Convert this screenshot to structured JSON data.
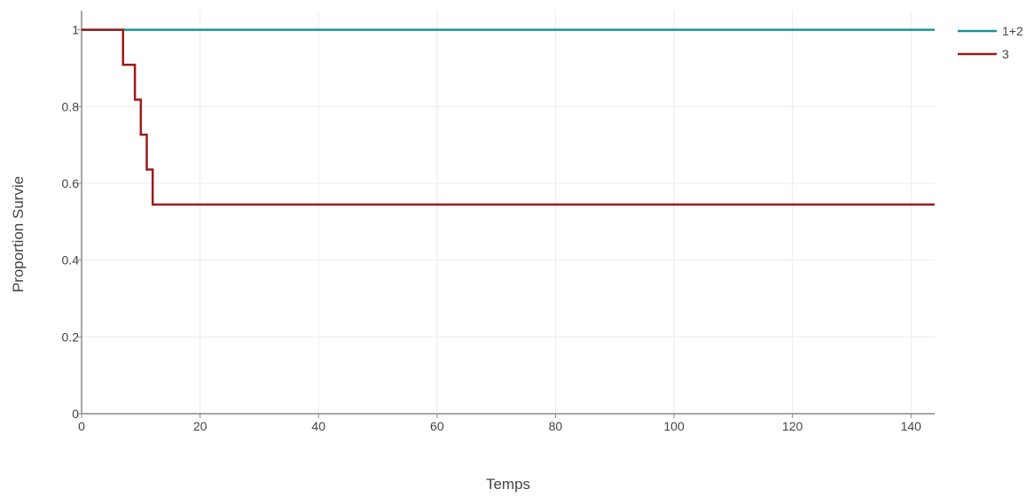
{
  "chart_data": {
    "type": "line",
    "title": "",
    "xlabel": "Temps",
    "ylabel": "Proportion Survie",
    "xlim": [
      0,
      144
    ],
    "ylim": [
      0,
      1.05
    ],
    "x_ticks": [
      0,
      20,
      40,
      60,
      80,
      100,
      120,
      140
    ],
    "x_tick_labels": [
      "0",
      "20",
      "40",
      "60",
      "80",
      "100",
      "120",
      "140"
    ],
    "y_ticks": [
      0,
      0.2,
      0.4,
      0.6,
      0.8,
      1
    ],
    "y_tick_labels": [
      "0",
      "0.2",
      "0.4",
      "0.6",
      "0.8",
      "1"
    ],
    "grid": true,
    "legend_position": "top-right",
    "step": true,
    "series": [
      {
        "name": "1+2",
        "color": "#17959a",
        "x": [
          0,
          144
        ],
        "y": [
          1,
          1
        ]
      },
      {
        "name": "3",
        "color": "#9b1b1b",
        "x": [
          0,
          7,
          9,
          10,
          11,
          12,
          144
        ],
        "y": [
          1,
          0.909,
          0.818,
          0.727,
          0.636,
          0.545,
          0.545
        ]
      }
    ]
  }
}
